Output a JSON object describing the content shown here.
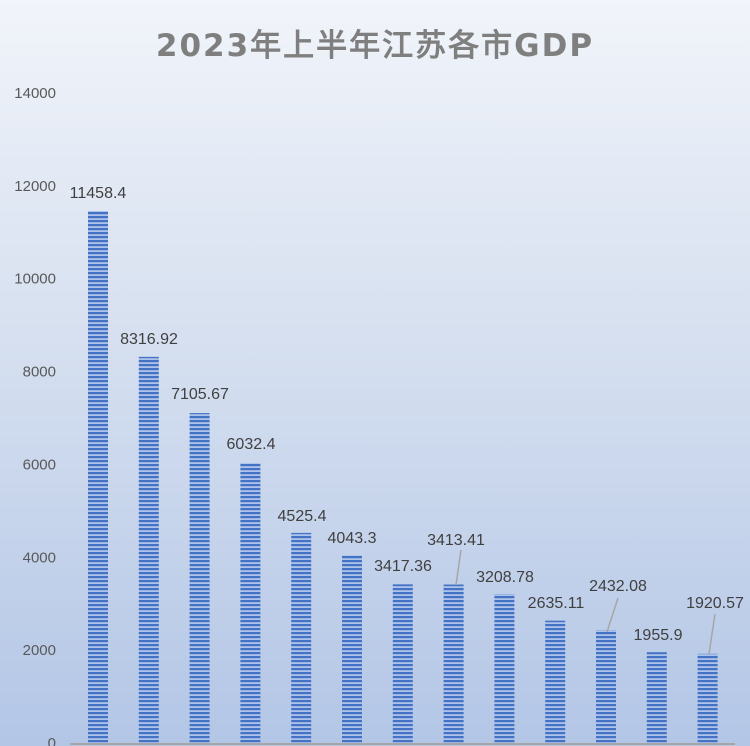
{
  "chart_data": {
    "type": "bar",
    "title": "2023年上半年江苏各市GDP",
    "xlabel": "",
    "ylabel": "",
    "ylim": [
      0,
      14000
    ],
    "yticks": [
      0,
      2000,
      4000,
      6000,
      8000,
      10000,
      12000,
      14000
    ],
    "grid": false,
    "legend": "none",
    "values": [
      11458.4,
      8316.92,
      7105.67,
      6032.4,
      4525.4,
      4043.3,
      3417.36,
      3413.41,
      3208.78,
      2635.11,
      2432.08,
      1955.9,
      1920.57
    ],
    "data_labels": [
      "11458.4",
      "8316.92",
      "7105.67",
      "6032.4",
      "4525.4",
      "4043.3",
      "3417.36",
      "3413.41",
      "3208.78",
      "2635.11",
      "2432.08",
      "1955.9",
      "1920.57"
    ],
    "colors": {
      "bar_dark": "#4472c4",
      "bar_light": "#aec3ea",
      "title": "#7f7f7f"
    }
  }
}
